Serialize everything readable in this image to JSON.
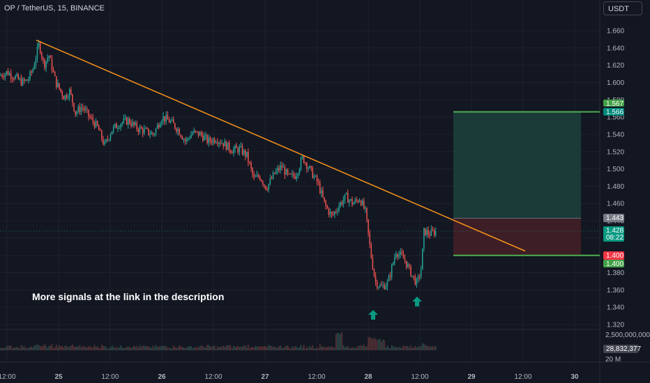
{
  "header": {
    "symbol_title": "OP / TetherUS, 15, BINANCE",
    "currency_button": "USDT"
  },
  "annotation": {
    "text": "More signals at the link in the description"
  },
  "colors": {
    "background": "#131722",
    "up": "#26a69a",
    "down": "#ef5350",
    "trendline": "#f7931a",
    "target_zone": "#1b3b38",
    "stop_zone": "#3d1e26",
    "position_line": "#4caf50",
    "arrow": "#089981"
  },
  "chart_data": {
    "type": "candlestick",
    "title": "",
    "ylim": [
      1.315,
      1.675
    ],
    "y_ticks": [
      "1.660",
      "1.640",
      "1.620",
      "1.600",
      "1.580",
      "1.560",
      "1.540",
      "1.520",
      "1.500",
      "1.480",
      "1.460",
      "1.440",
      "1.420",
      "1.400",
      "1.380",
      "1.360",
      "1.340",
      "1.320"
    ],
    "x_ticks": [
      "12:00",
      "25",
      "12:00",
      "26",
      "12:00",
      "27",
      "12:00",
      "28",
      "12:00",
      "29",
      "12:00",
      "30"
    ],
    "price_path": [
      [
        0,
        1.608
      ],
      [
        10,
        1.612
      ],
      [
        20,
        1.607
      ],
      [
        32,
        1.6
      ],
      [
        40,
        1.603
      ],
      [
        47,
        1.615
      ],
      [
        56,
        1.645
      ],
      [
        63,
        1.62
      ],
      [
        70,
        1.632
      ],
      [
        80,
        1.6
      ],
      [
        92,
        1.583
      ],
      [
        100,
        1.59
      ],
      [
        108,
        1.565
      ],
      [
        118,
        1.572
      ],
      [
        128,
        1.56
      ],
      [
        140,
        1.548
      ],
      [
        150,
        1.527
      ],
      [
        160,
        1.545
      ],
      [
        172,
        1.553
      ],
      [
        184,
        1.556
      ],
      [
        195,
        1.548
      ],
      [
        207,
        1.544
      ],
      [
        220,
        1.54
      ],
      [
        232,
        1.56
      ],
      [
        244,
        1.555
      ],
      [
        256,
        1.545
      ],
      [
        266,
        1.532
      ],
      [
        276,
        1.542
      ],
      [
        288,
        1.54
      ],
      [
        298,
        1.532
      ],
      [
        310,
        1.535
      ],
      [
        320,
        1.53
      ],
      [
        332,
        1.522
      ],
      [
        344,
        1.523
      ],
      [
        354,
        1.515
      ],
      [
        364,
        1.488
      ],
      [
        372,
        1.492
      ],
      [
        382,
        1.478
      ],
      [
        394,
        1.495
      ],
      [
        404,
        1.503
      ],
      [
        414,
        1.49
      ],
      [
        424,
        1.493
      ],
      [
        434,
        1.513
      ],
      [
        446,
        1.497
      ],
      [
        456,
        1.483
      ],
      [
        466,
        1.458
      ],
      [
        476,
        1.445
      ],
      [
        486,
        1.458
      ],
      [
        496,
        1.468
      ],
      [
        506,
        1.46
      ],
      [
        516,
        1.466
      ],
      [
        524,
        1.45
      ],
      [
        532,
        1.4
      ],
      [
        538,
        1.37
      ],
      [
        546,
        1.363
      ],
      [
        556,
        1.368
      ],
      [
        568,
        1.405
      ],
      [
        580,
        1.395
      ],
      [
        592,
        1.375
      ],
      [
        598,
        1.367
      ],
      [
        604,
        1.385
      ],
      [
        608,
        1.428
      ],
      [
        616,
        1.425
      ],
      [
        626,
        1.428
      ]
    ],
    "trendline": {
      "start": [
        "24 ~08:00",
        1.649
      ],
      "end": [
        "29 ~06:00",
        1.405
      ]
    },
    "position": {
      "target_price": 1.566,
      "entry_price": 1.443,
      "stop_price": 1.4
    },
    "last_price": 1.428,
    "price_labels": {
      "target_top": "1.567",
      "target": "1.566",
      "entry": "1.443",
      "last": "1.428",
      "countdown": "08:22",
      "stop_top": "1.400",
      "stop": "1.400"
    },
    "volume": {
      "ylim": [
        0,
        3000000000
      ],
      "tick_label": "2,500,000,000",
      "current_label": "28,832,377",
      "bottom_label": "20 M"
    },
    "signal_arrows": [
      {
        "time": "28 ~00:30",
        "direction": "up"
      },
      {
        "time": "28 ~12:00",
        "direction": "up"
      }
    ]
  }
}
